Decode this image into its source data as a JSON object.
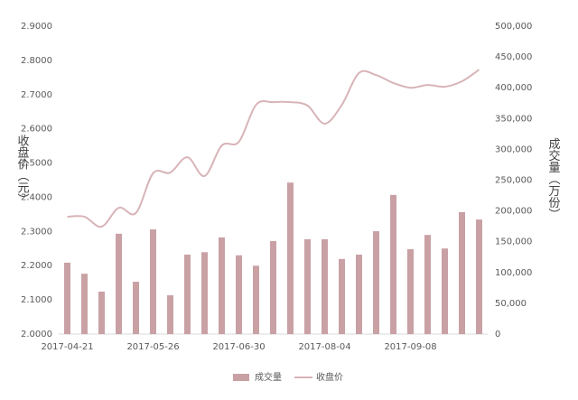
{
  "chart_data": {
    "type": "bar-line",
    "y_label": "收盘价（元）",
    "y2_label": "成交量（万份）",
    "categories": [
      "2017-04-21",
      null,
      null,
      null,
      null,
      "2017-05-26",
      null,
      null,
      null,
      null,
      "2017-06-30",
      null,
      null,
      null,
      null,
      "2017-08-04",
      null,
      null,
      null,
      null,
      "2017-09-08",
      null,
      null,
      null,
      null
    ],
    "series": [
      {
        "name": "成交量",
        "type": "bar",
        "axis": "y2",
        "color": "#c9a1a5",
        "values": [
          116000,
          98000,
          69000,
          163000,
          85000,
          170000,
          63000,
          129000,
          133000,
          157000,
          128000,
          111000,
          151000,
          246000,
          154000,
          154000,
          122000,
          129000,
          167000,
          226000,
          138000,
          161000,
          139000,
          198000,
          186000
        ]
      },
      {
        "name": "收盘价",
        "type": "line",
        "axis": "y",
        "color": "#d8b4b8",
        "values": [
          2.343,
          2.343,
          2.314,
          2.369,
          2.354,
          2.47,
          2.472,
          2.517,
          2.462,
          2.551,
          2.562,
          2.67,
          2.678,
          2.678,
          2.668,
          2.615,
          2.67,
          2.763,
          2.757,
          2.734,
          2.72,
          2.728,
          2.723,
          2.739,
          2.773
        ]
      }
    ],
    "ylim": [
      2,
      2.9
    ],
    "yticks": [
      {
        "value": 2,
        "label": "2.0000"
      },
      {
        "value": 2.1,
        "label": "2.1000"
      },
      {
        "value": 2.2,
        "label": "2.2000"
      },
      {
        "value": 2.3,
        "label": "2.3000"
      },
      {
        "value": 2.4,
        "label": "2.4000"
      },
      {
        "value": 2.5,
        "label": "2.5000"
      },
      {
        "value": 2.6,
        "label": "2.6000"
      },
      {
        "value": 2.7,
        "label": "2.7000"
      },
      {
        "value": 2.8,
        "label": "2.8000"
      },
      {
        "value": 2.9,
        "label": "2.9000"
      }
    ],
    "y2lim": [
      0,
      500000
    ],
    "y2ticks": [
      0,
      {
        "value": 50000,
        "label": "50,000"
      },
      {
        "value": 100000,
        "label": "100,000"
      },
      {
        "value": 150000,
        "label": "150,000"
      },
      {
        "value": 200000,
        "label": "200,000"
      },
      {
        "value": 250000,
        "label": "250,000"
      },
      {
        "value": 300000,
        "label": "300,000"
      },
      {
        "value": 350000,
        "label": "350,000"
      },
      {
        "value": 400000,
        "label": "400,000"
      },
      {
        "value": 450000,
        "label": "450,000"
      },
      {
        "value": 500000,
        "label": "500,000"
      }
    ],
    "legend": "bottom"
  }
}
